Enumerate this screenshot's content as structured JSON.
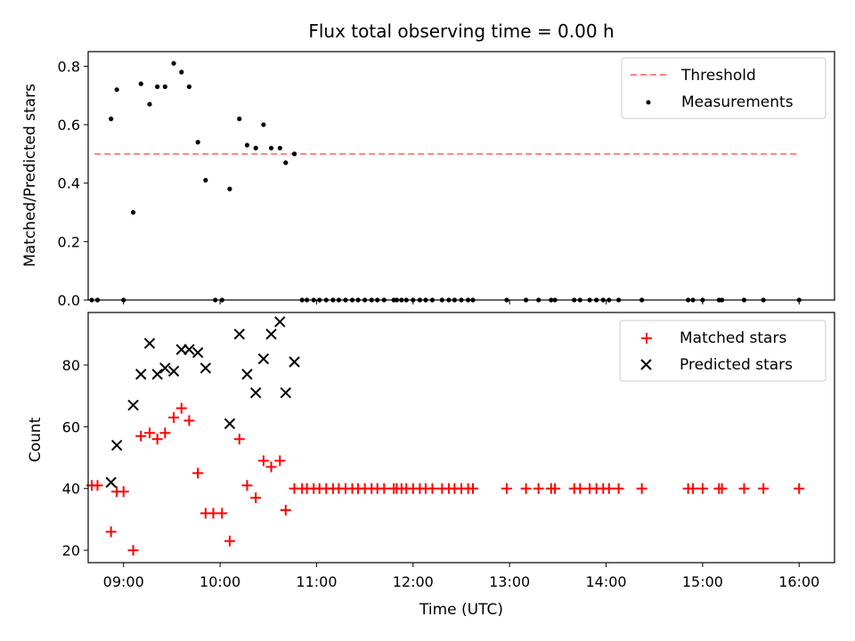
{
  "chart_data": {
    "title": "Flux total observing time = 0.00 h",
    "xlabel": "Time (UTC)",
    "xlim": [
      8.6333,
      16.3667
    ],
    "xticks": [
      {
        "value": 9,
        "label": "09:00"
      },
      {
        "value": 10,
        "label": "10:00"
      },
      {
        "value": 11,
        "label": "11:00"
      },
      {
        "value": 12,
        "label": "12:00"
      },
      {
        "value": 13,
        "label": "13:00"
      },
      {
        "value": 14,
        "label": "14:00"
      },
      {
        "value": 15,
        "label": "15:00"
      },
      {
        "value": 16,
        "label": "16:00"
      }
    ],
    "panels": [
      {
        "type": "scatter",
        "ylabel": "Matched/Predicted stars",
        "ylim": [
          0,
          0.85
        ],
        "yticks": [
          "0.0",
          "0.2",
          "0.4",
          "0.6",
          "0.8"
        ],
        "grid": false,
        "legend_position": "upper right",
        "series": [
          {
            "name": "Threshold",
            "kind": "dashed-line",
            "color": "#ff7f7f",
            "x": [
              8.7,
              16.0
            ],
            "y": [
              0.5,
              0.5
            ]
          },
          {
            "name": "Measurements",
            "kind": "dot",
            "color": "#000000",
            "x": [
              8.87,
              8.93,
              9.1,
              9.18,
              9.27,
              9.35,
              9.43,
              9.52,
              9.6,
              9.68,
              9.77,
              9.85,
              10.1,
              10.2,
              10.28,
              10.37,
              10.45,
              10.53,
              10.62,
              10.68,
              10.77,
              8.67,
              8.73,
              9.0,
              9.95,
              10.02,
              10.85,
              10.9,
              10.97,
              11.03,
              11.1,
              11.17,
              11.23,
              11.3,
              11.37,
              11.43,
              11.5,
              11.57,
              11.63,
              11.7,
              11.8,
              11.83,
              11.88,
              11.93,
              12.0,
              12.07,
              12.13,
              12.2,
              12.3,
              12.37,
              12.43,
              12.5,
              12.57,
              12.62,
              12.97,
              13.17,
              13.3,
              13.43,
              13.47,
              13.67,
              13.73,
              13.83,
              13.9,
              13.97,
              14.03,
              14.13,
              14.37,
              14.85,
              14.9,
              15.0,
              15.17,
              15.2,
              15.43,
              15.63,
              16.0
            ],
            "y": [
              0.62,
              0.72,
              0.3,
              0.74,
              0.67,
              0.73,
              0.73,
              0.81,
              0.78,
              0.73,
              0.54,
              0.41,
              0.38,
              0.62,
              0.53,
              0.52,
              0.6,
              0.52,
              0.52,
              0.47,
              0.5,
              0,
              0,
              0,
              0,
              0,
              0,
              0,
              0,
              0,
              0,
              0,
              0,
              0,
              0,
              0,
              0,
              0,
              0,
              0,
              0,
              0,
              0,
              0,
              0,
              0,
              0,
              0,
              0,
              0,
              0,
              0,
              0,
              0,
              0,
              0,
              0,
              0,
              0,
              0,
              0,
              0,
              0,
              0,
              0,
              0,
              0,
              0,
              0,
              0,
              0,
              0,
              0,
              0,
              0
            ]
          }
        ]
      },
      {
        "type": "scatter",
        "ylabel": "Count",
        "ylim": [
          16,
          97
        ],
        "yticks": [
          "20",
          "40",
          "60",
          "80"
        ],
        "grid": false,
        "legend_position": "upper right",
        "series": [
          {
            "name": "Matched stars",
            "kind": "plus",
            "color": "#ff0000",
            "x": [
              8.67,
              8.73,
              8.87,
              8.93,
              9.0,
              9.1,
              9.18,
              9.27,
              9.35,
              9.43,
              9.52,
              9.6,
              9.68,
              9.77,
              9.85,
              9.93,
              10.02,
              10.1,
              10.2,
              10.28,
              10.37,
              10.45,
              10.53,
              10.62,
              10.68,
              10.77,
              10.85,
              10.9,
              10.97,
              11.03,
              11.1,
              11.17,
              11.23,
              11.3,
              11.37,
              11.43,
              11.5,
              11.57,
              11.63,
              11.7,
              11.8,
              11.83,
              11.88,
              11.93,
              12.0,
              12.07,
              12.13,
              12.2,
              12.3,
              12.37,
              12.43,
              12.5,
              12.57,
              12.62,
              12.97,
              13.17,
              13.3,
              13.43,
              13.47,
              13.67,
              13.73,
              13.83,
              13.9,
              13.97,
              14.03,
              14.13,
              14.37,
              14.85,
              14.9,
              15.0,
              15.17,
              15.2,
              15.43,
              15.63,
              16.0
            ],
            "y": [
              41,
              41,
              26,
              39,
              39,
              20,
              57,
              58,
              56,
              58,
              63,
              66,
              62,
              45,
              32,
              32,
              32,
              23,
              56,
              41,
              37,
              49,
              47,
              49,
              33,
              40,
              40,
              40,
              40,
              40,
              40,
              40,
              40,
              40,
              40,
              40,
              40,
              40,
              40,
              40,
              40,
              40,
              40,
              40,
              40,
              40,
              40,
              40,
              40,
              40,
              40,
              40,
              40,
              40,
              40,
              40,
              40,
              40,
              40,
              40,
              40,
              40,
              40,
              40,
              40,
              40,
              40,
              40,
              40,
              40,
              40,
              40,
              40,
              40,
              40
            ]
          },
          {
            "name": "Predicted stars",
            "kind": "cross",
            "color": "#000000",
            "x": [
              8.87,
              8.93,
              9.1,
              9.18,
              9.27,
              9.35,
              9.43,
              9.52,
              9.6,
              9.68,
              9.77,
              9.85,
              10.1,
              10.2,
              10.28,
              10.37,
              10.45,
              10.53,
              10.62,
              10.68,
              10.77
            ],
            "y": [
              42,
              54,
              67,
              77,
              87,
              77,
              79,
              78,
              85,
              85,
              84,
              79,
              61,
              90,
              77,
              71,
              82,
              90,
              94,
              71,
              81
            ]
          }
        ]
      }
    ]
  }
}
